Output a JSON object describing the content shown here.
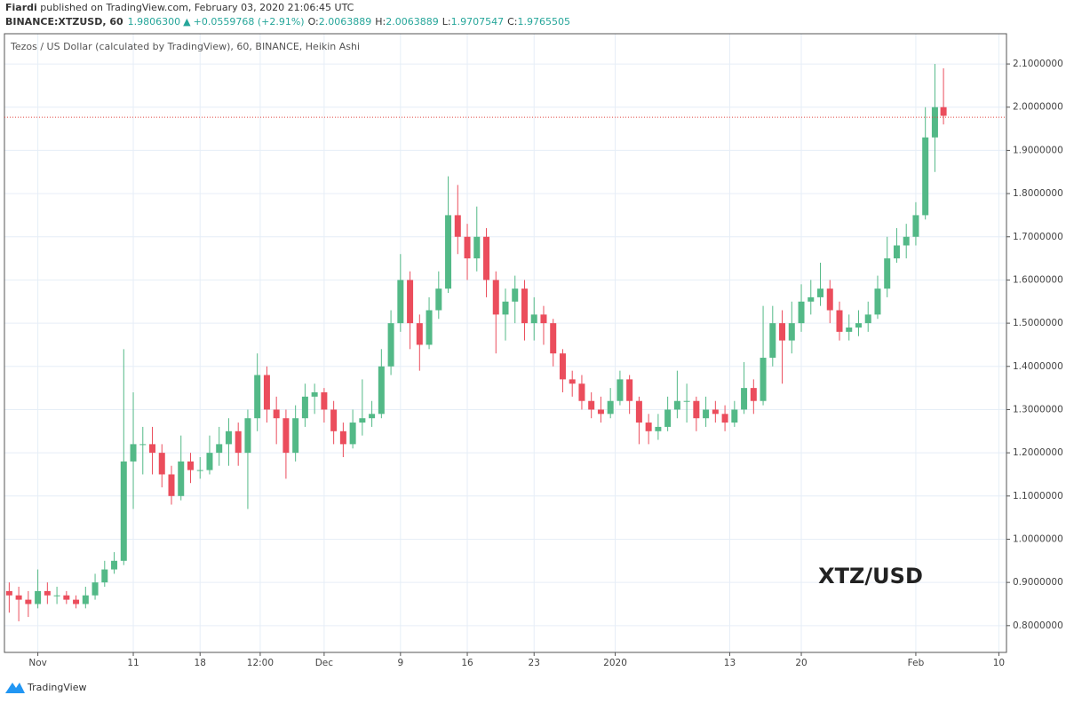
{
  "header": {
    "author": "Fiardi",
    "published": " published on TradingView.com, February 03, 2020 21:06:45 UTC",
    "symbol": "BINANCE:XTZUSD, 60",
    "last": "1.9806300",
    "arrow": "▲",
    "change": "+0.0559768 (+2.91%)",
    "ohlc": [
      {
        "label": "O:",
        "value": "2.0063889"
      },
      {
        "label": "H:",
        "value": "2.0063889"
      },
      {
        "label": "L:",
        "value": "1.9707547"
      },
      {
        "label": "C:",
        "value": "1.9765505"
      }
    ]
  },
  "footer": {
    "brand": "TradingView"
  },
  "chart_data": {
    "type": "candlestick",
    "title": "Tezos / US Dollar (calculated by TradingView), 60, BINANCE, Heikin Ashi",
    "watermark": "XTZ/USD",
    "up_color": "#53b987",
    "down_color": "#eb4d5c",
    "grid": true,
    "price_line": 1.9765505,
    "price_line_color": "#e0433f",
    "xlim": [
      -3.5,
      101.5
    ],
    "ylim": [
      0.738,
      2.17
    ],
    "xticks": [
      {
        "value": 0,
        "label": "Nov"
      },
      {
        "value": 10,
        "label": "11"
      },
      {
        "value": 17,
        "label": "18"
      },
      {
        "value": 23.3,
        "label": "12:00"
      },
      {
        "value": 30,
        "label": "Dec"
      },
      {
        "value": 38,
        "label": "9"
      },
      {
        "value": 45,
        "label": "16"
      },
      {
        "value": 52,
        "label": "23"
      },
      {
        "value": 60.5,
        "label": "2020"
      },
      {
        "value": 72.5,
        "label": "13"
      },
      {
        "value": 80,
        "label": "20"
      },
      {
        "value": 92,
        "label": "Feb"
      },
      {
        "value": 100.7,
        "label": "10"
      }
    ],
    "yticks": [
      {
        "value": 0.8,
        "label": "0.8000000"
      },
      {
        "value": 0.9,
        "label": "0.9000000"
      },
      {
        "value": 1.0,
        "label": "1.0000000"
      },
      {
        "value": 1.1,
        "label": "1.1000000"
      },
      {
        "value": 1.2,
        "label": "1.2000000"
      },
      {
        "value": 1.3,
        "label": "1.3000000"
      },
      {
        "value": 1.4,
        "label": "1.4000000"
      },
      {
        "value": 1.5,
        "label": "1.5000000"
      },
      {
        "value": 1.6,
        "label": "1.6000000"
      },
      {
        "value": 1.7,
        "label": "1.7000000"
      },
      {
        "value": 1.8,
        "label": "1.8000000"
      },
      {
        "value": 1.9,
        "label": "1.9000000"
      },
      {
        "value": 2.0,
        "label": "2.0000000"
      },
      {
        "value": 2.1,
        "label": "2.1000000"
      }
    ],
    "x": [
      -3,
      -2,
      -1,
      0,
      1,
      2,
      3,
      4,
      5,
      6,
      7,
      8,
      9,
      10,
      11,
      12,
      13,
      14,
      15,
      16,
      17,
      18,
      19,
      20,
      21,
      22,
      23,
      24,
      25,
      26,
      27,
      28,
      29,
      30,
      31,
      32,
      33,
      34,
      35,
      36,
      37,
      38,
      39,
      40,
      41,
      42,
      43,
      44,
      45,
      46,
      47,
      48,
      49,
      50,
      51,
      52,
      53,
      54,
      55,
      56,
      57,
      58,
      59,
      60,
      61,
      62,
      63,
      64,
      65,
      66,
      67,
      68,
      69,
      70,
      71,
      72,
      73,
      74,
      75,
      76,
      77,
      78,
      79,
      80,
      81,
      82,
      83,
      84,
      85,
      86,
      87,
      88,
      89,
      90,
      91,
      92,
      93,
      94,
      94.9
    ],
    "open": [
      0.88,
      0.87,
      0.86,
      0.85,
      0.88,
      0.87,
      0.87,
      0.86,
      0.85,
      0.87,
      0.9,
      0.93,
      0.95,
      1.18,
      1.22,
      1.22,
      1.2,
      1.15,
      1.1,
      1.18,
      1.16,
      1.16,
      1.2,
      1.22,
      1.25,
      1.2,
      1.28,
      1.38,
      1.3,
      1.28,
      1.2,
      1.28,
      1.33,
      1.34,
      1.3,
      1.25,
      1.22,
      1.27,
      1.28,
      1.29,
      1.4,
      1.5,
      1.6,
      1.5,
      1.45,
      1.53,
      1.58,
      1.75,
      1.7,
      1.65,
      1.7,
      1.6,
      1.52,
      1.55,
      1.58,
      1.5,
      1.52,
      1.5,
      1.43,
      1.37,
      1.36,
      1.32,
      1.3,
      1.29,
      1.32,
      1.37,
      1.32,
      1.27,
      1.25,
      1.26,
      1.3,
      1.32,
      1.32,
      1.28,
      1.3,
      1.29,
      1.27,
      1.3,
      1.35,
      1.32,
      1.42,
      1.5,
      1.46,
      1.5,
      1.55,
      1.56,
      1.58,
      1.53,
      1.48,
      1.49,
      1.5,
      1.52,
      1.58,
      1.65,
      1.68,
      1.7,
      1.75,
      1.93,
      2.0
    ],
    "high": [
      0.9,
      0.89,
      0.88,
      0.93,
      0.9,
      0.89,
      0.88,
      0.87,
      0.89,
      0.92,
      0.95,
      0.97,
      1.44,
      1.34,
      1.26,
      1.26,
      1.22,
      1.17,
      1.24,
      1.2,
      1.19,
      1.24,
      1.26,
      1.28,
      1.27,
      1.3,
      1.43,
      1.4,
      1.33,
      1.3,
      1.31,
      1.36,
      1.36,
      1.35,
      1.32,
      1.27,
      1.3,
      1.37,
      1.32,
      1.44,
      1.53,
      1.66,
      1.62,
      1.52,
      1.56,
      1.62,
      1.84,
      1.82,
      1.73,
      1.77,
      1.72,
      1.62,
      1.58,
      1.61,
      1.6,
      1.56,
      1.54,
      1.51,
      1.44,
      1.39,
      1.38,
      1.34,
      1.33,
      1.35,
      1.39,
      1.38,
      1.33,
      1.29,
      1.29,
      1.33,
      1.39,
      1.36,
      1.33,
      1.33,
      1.32,
      1.31,
      1.32,
      1.41,
      1.37,
      1.54,
      1.54,
      1.53,
      1.55,
      1.59,
      1.6,
      1.64,
      1.6,
      1.55,
      1.52,
      1.53,
      1.55,
      1.61,
      1.7,
      1.72,
      1.73,
      1.78,
      2.0,
      2.1,
      2.09
    ],
    "low": [
      0.83,
      0.81,
      0.82,
      0.84,
      0.85,
      0.85,
      0.85,
      0.84,
      0.84,
      0.86,
      0.89,
      0.92,
      0.94,
      1.07,
      1.15,
      1.15,
      1.12,
      1.08,
      1.09,
      1.13,
      1.14,
      1.15,
      1.17,
      1.17,
      1.17,
      1.07,
      1.25,
      1.27,
      1.22,
      1.14,
      1.18,
      1.26,
      1.29,
      1.27,
      1.22,
      1.19,
      1.21,
      1.24,
      1.26,
      1.28,
      1.38,
      1.48,
      1.44,
      1.39,
      1.44,
      1.51,
      1.57,
      1.66,
      1.6,
      1.62,
      1.56,
      1.43,
      1.46,
      1.5,
      1.46,
      1.46,
      1.45,
      1.4,
      1.34,
      1.33,
      1.3,
      1.28,
      1.27,
      1.28,
      1.31,
      1.29,
      1.22,
      1.22,
      1.23,
      1.25,
      1.28,
      1.27,
      1.25,
      1.26,
      1.27,
      1.25,
      1.26,
      1.29,
      1.29,
      1.31,
      1.4,
      1.36,
      1.43,
      1.48,
      1.52,
      1.54,
      1.5,
      1.46,
      1.46,
      1.47,
      1.48,
      1.51,
      1.56,
      1.64,
      1.65,
      1.68,
      1.74,
      1.85,
      1.96
    ],
    "close": [
      0.87,
      0.86,
      0.85,
      0.88,
      0.87,
      0.87,
      0.86,
      0.85,
      0.87,
      0.9,
      0.93,
      0.95,
      1.18,
      1.22,
      1.22,
      1.2,
      1.15,
      1.1,
      1.18,
      1.16,
      1.16,
      1.2,
      1.22,
      1.25,
      1.2,
      1.28,
      1.38,
      1.3,
      1.28,
      1.2,
      1.28,
      1.33,
      1.34,
      1.3,
      1.25,
      1.22,
      1.27,
      1.28,
      1.29,
      1.4,
      1.5,
      1.6,
      1.5,
      1.45,
      1.53,
      1.58,
      1.75,
      1.7,
      1.65,
      1.7,
      1.6,
      1.52,
      1.55,
      1.58,
      1.5,
      1.52,
      1.5,
      1.43,
      1.37,
      1.36,
      1.32,
      1.3,
      1.29,
      1.32,
      1.37,
      1.32,
      1.27,
      1.25,
      1.26,
      1.3,
      1.32,
      1.32,
      1.28,
      1.3,
      1.29,
      1.27,
      1.3,
      1.35,
      1.32,
      1.42,
      1.5,
      1.46,
      1.5,
      1.55,
      1.56,
      1.58,
      1.53,
      1.48,
      1.49,
      1.5,
      1.52,
      1.58,
      1.65,
      1.68,
      1.7,
      1.75,
      1.93,
      2.0,
      1.98
    ]
  }
}
